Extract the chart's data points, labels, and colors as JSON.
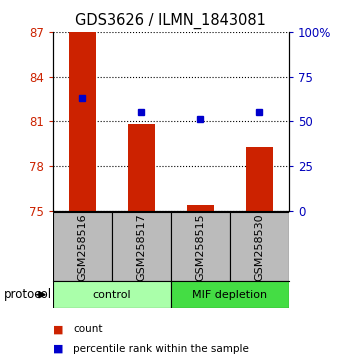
{
  "title": "GDS3626 / ILMN_1843081",
  "samples": [
    "GSM258516",
    "GSM258517",
    "GSM258515",
    "GSM258530"
  ],
  "bar_values": [
    87.0,
    80.8,
    75.35,
    79.3
  ],
  "percentile_values": [
    63,
    55,
    51,
    55
  ],
  "y_min": 75,
  "y_max": 87,
  "y_ticks_left": [
    75,
    78,
    81,
    84,
    87
  ],
  "y_ticks_right": [
    0,
    25,
    50,
    75,
    100
  ],
  "bar_color": "#cc2200",
  "dot_color": "#0000cc",
  "bar_bottom": 75,
  "groups": [
    {
      "label": "control",
      "color": "#aaffaa"
    },
    {
      "label": "MIF depletion",
      "color": "#44dd44"
    }
  ],
  "ylabel_left_color": "#cc2200",
  "ylabel_right_color": "#0000bb",
  "sample_bg_color": "#bbbbbb",
  "legend_count_color": "#cc2200",
  "legend_pct_color": "#0000cc",
  "bar_width": 0.45
}
